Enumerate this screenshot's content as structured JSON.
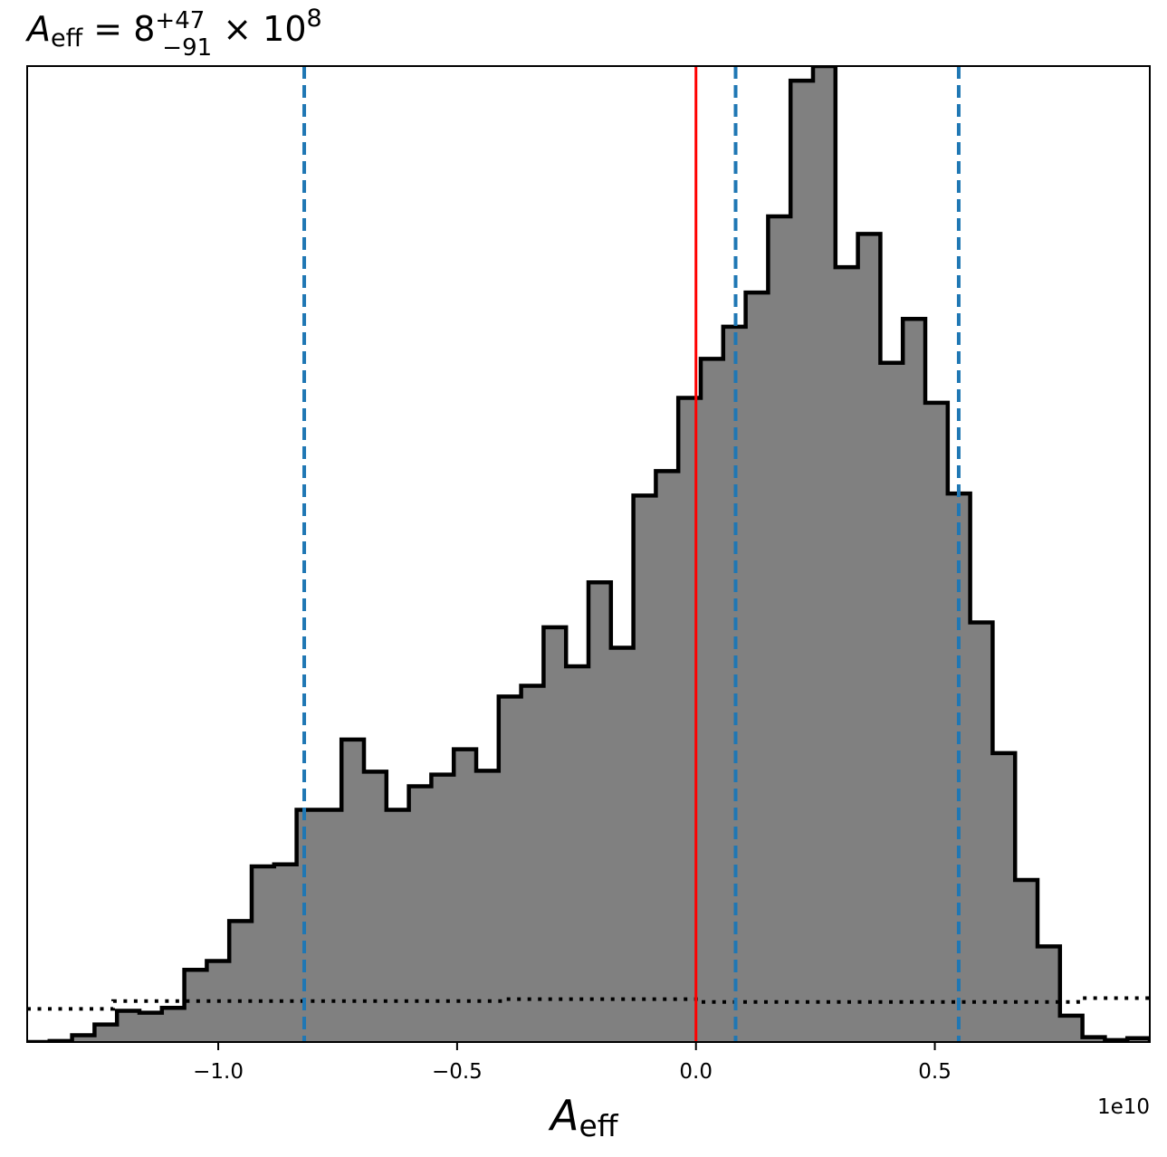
{
  "chart_data": {
    "type": "bar",
    "title": {
      "symbol": "A",
      "subscript": "eff",
      "rest": " = 8",
      "superscript": "+47",
      "lowerscript": "−91",
      "times": " × 10",
      "exponent": "8"
    },
    "xlabel": {
      "symbol": "A",
      "subscript": "eff"
    },
    "ylabel": "",
    "axis_offset_text": "1e10",
    "x_tick_labels": [
      "−1.0",
      "−0.5",
      "0.0",
      "0.5"
    ],
    "x_ticks": [
      -1.0,
      -0.5,
      0.0,
      0.5
    ],
    "xlim": [
      -1.4,
      0.95
    ],
    "ylim": [
      0,
      1.0
    ],
    "yticks_visible": false,
    "grid": false,
    "legend": "none",
    "bin_edges": [
      -1.4,
      -1.353,
      -1.306,
      -1.259,
      -1.212,
      -1.165,
      -1.118,
      -1.071,
      -1.024,
      -0.977,
      -0.93,
      -0.883,
      -0.836,
      -0.789,
      -0.742,
      -0.695,
      -0.648,
      -0.601,
      -0.554,
      -0.507,
      -0.46,
      -0.413,
      -0.366,
      -0.319,
      -0.272,
      -0.225,
      -0.178,
      -0.131,
      -0.084,
      -0.037,
      0.01,
      0.057,
      0.104,
      0.151,
      0.198,
      0.245,
      0.292,
      0.339,
      0.386,
      0.433,
      0.48,
      0.527,
      0.574,
      0.621,
      0.668,
      0.715,
      0.762,
      0.809,
      0.856,
      0.903,
      0.95
    ],
    "values": [
      0.0,
      0.001,
      0.007,
      0.018,
      0.032,
      0.03,
      0.035,
      0.074,
      0.083,
      0.124,
      0.18,
      0.182,
      0.238,
      0.238,
      0.31,
      0.277,
      0.238,
      0.262,
      0.274,
      0.3,
      0.278,
      0.354,
      0.365,
      0.425,
      0.385,
      0.471,
      0.404,
      0.56,
      0.585,
      0.66,
      0.7,
      0.733,
      0.768,
      0.846,
      0.985,
      1.0,
      0.794,
      0.828,
      0.696,
      0.741,
      0.655,
      0.562,
      0.43,
      0.296,
      0.166,
      0.098,
      0.027,
      0.005,
      0.002,
      0.004
    ],
    "series": [
      {
        "name": "",
        "kind": "histogram",
        "fill": "#808080",
        "edge": "#000000"
      }
    ],
    "prior_dotted": {
      "x": [
        -1.4,
        -1.22,
        -1.22,
        -0.4,
        -0.4,
        0.0,
        0.0,
        0.8,
        0.8,
        0.95
      ],
      "y": [
        0.034,
        0.034,
        0.042,
        0.042,
        0.044,
        0.044,
        0.041,
        0.041,
        0.045,
        0.045
      ],
      "color": "#000000"
    },
    "reference_lines": [
      {
        "x": 0.0,
        "style": "solid",
        "color": "#ff0000"
      },
      {
        "x": -0.82,
        "style": "dashed",
        "color": "#1f77b4"
      },
      {
        "x": 0.083,
        "style": "dashed",
        "color": "#1f77b4"
      },
      {
        "x": 0.55,
        "style": "dashed",
        "color": "#1f77b4"
      }
    ]
  }
}
